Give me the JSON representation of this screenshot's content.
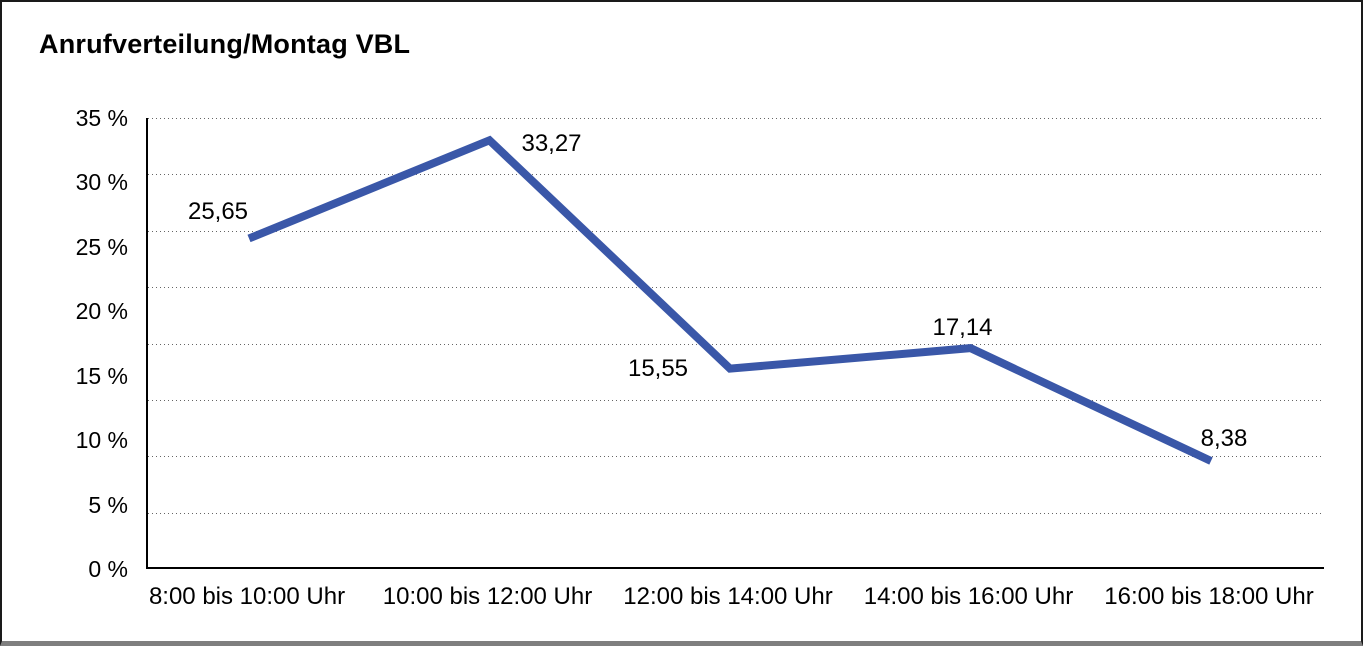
{
  "title": "Anrufverteilung/Montag VBL",
  "chart_data": {
    "type": "line",
    "title": "Anrufverteilung/Montag VBL",
    "categories": [
      "8:00 bis 10:00 Uhr",
      "10:00 bis 12:00 Uhr",
      "12:00 bis 14:00 Uhr",
      "14:00 bis 16:00 Uhr",
      "16:00 bis 18:00 Uhr"
    ],
    "values": [
      25.65,
      33.27,
      15.55,
      17.14,
      8.38
    ],
    "data_labels": [
      "25,65",
      "33,27",
      "15,55",
      "17,14",
      "8,38"
    ],
    "y_tick_labels": [
      "35 %",
      "30 %",
      "25 %",
      "20 %",
      "15 %",
      "10 %",
      "5 %",
      "0 %"
    ],
    "y_tick_values": [
      35,
      30,
      25,
      20,
      15,
      10,
      5,
      0
    ],
    "ylim": [
      0,
      35
    ],
    "unit": "%",
    "grid": "dotted horizontal, 8 rows",
    "legend": "none",
    "line_color": "#3A57A8",
    "axis_color": "#000000",
    "gridline_color": "#4a4a4a"
  }
}
